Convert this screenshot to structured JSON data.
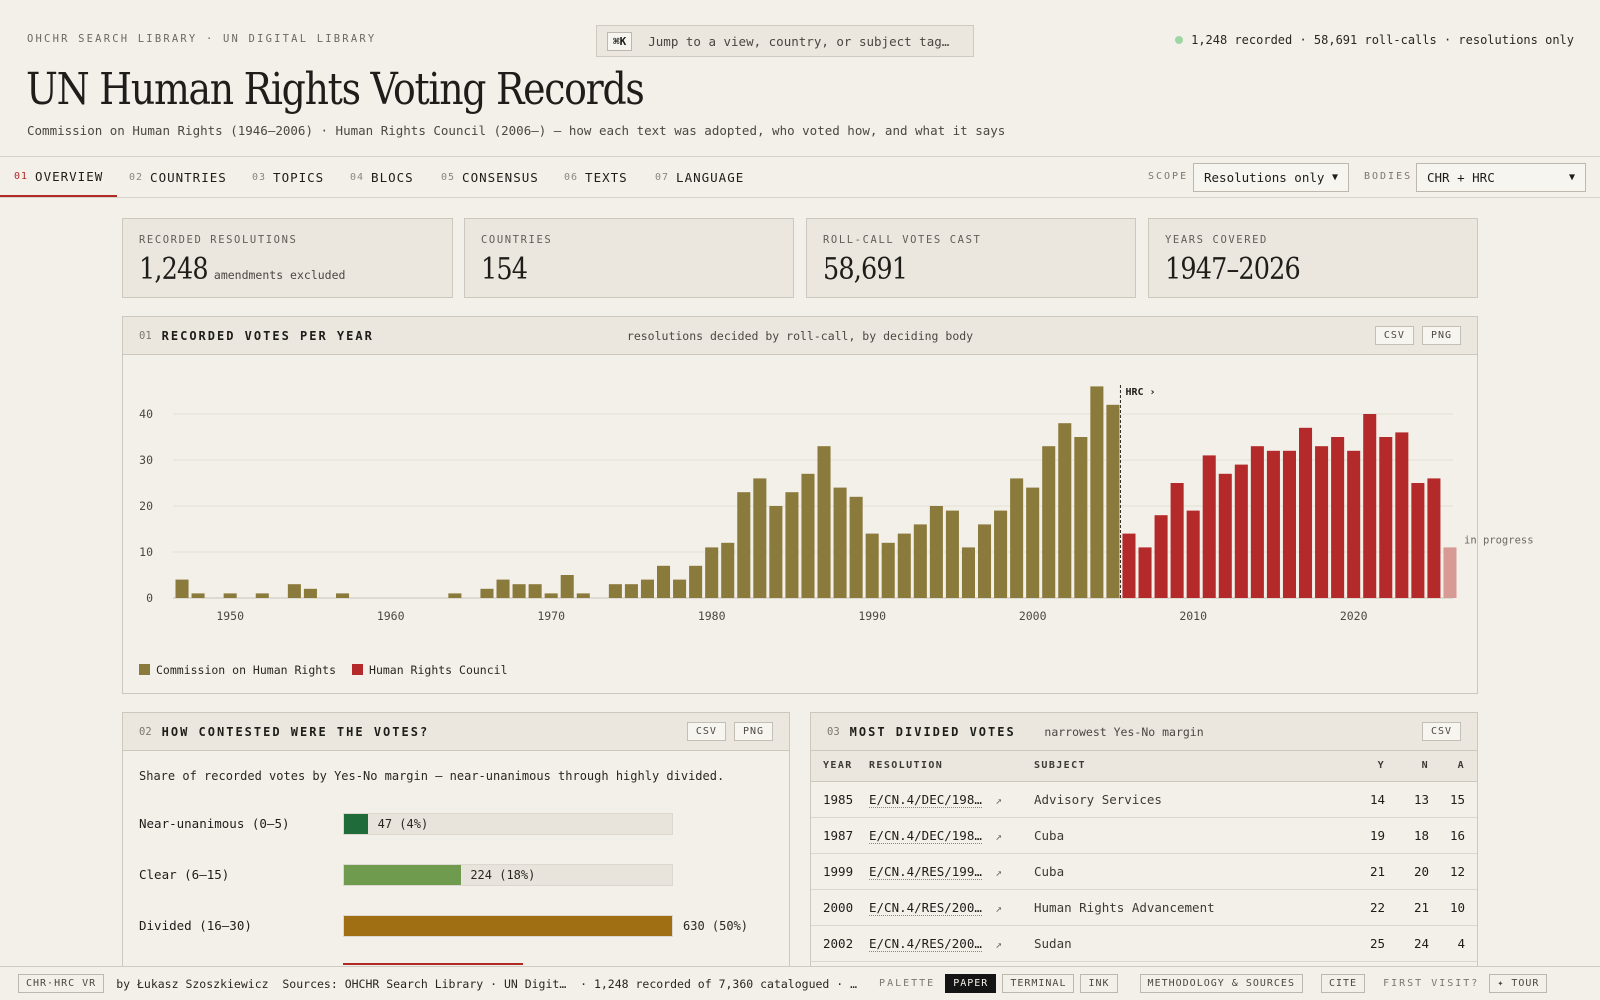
{
  "header": {
    "eyebrow": "OHCHR SEARCH LIBRARY · UN DIGITAL LIBRARY",
    "kbd": "⌘K",
    "search_placeholder": "Jump to a view, country, or subject tag…",
    "status": "1,248 recorded · 58,691 roll-calls · resolutions only",
    "title": "UN Human Rights Voting Records",
    "subtitle": "Commission on Human Rights (1946–2006) · Human Rights Council (2006–) — how each text was adopted, who voted how, and what it says"
  },
  "nav": {
    "tabs": [
      {
        "num": "01",
        "label": "OVERVIEW"
      },
      {
        "num": "02",
        "label": "COUNTRIES"
      },
      {
        "num": "03",
        "label": "TOPICS"
      },
      {
        "num": "04",
        "label": "BLOCS"
      },
      {
        "num": "05",
        "label": "CONSENSUS"
      },
      {
        "num": "06",
        "label": "TEXTS"
      },
      {
        "num": "07",
        "label": "LANGUAGE"
      }
    ],
    "scope_label": "SCOPE",
    "scope_value": "Resolutions only",
    "bodies_label": "BODIES",
    "bodies_value": "CHR + HRC"
  },
  "stats": [
    {
      "label": "RECORDED RESOLUTIONS",
      "value": "1,248",
      "note": "amendments excluded"
    },
    {
      "label": "COUNTRIES",
      "value": "154",
      "note": ""
    },
    {
      "label": "ROLL-CALL VOTES CAST",
      "value": "58,691",
      "note": ""
    },
    {
      "label": "YEARS COVERED",
      "value": "1947–2026",
      "note": ""
    }
  ],
  "votes_panel": {
    "num": "01",
    "title": "RECORDED VOTES PER YEAR",
    "subtitle": "resolutions decided by roll-call, by deciding body",
    "buttons": [
      "CSV",
      "PNG"
    ]
  },
  "contested_panel": {
    "num": "02",
    "title": "HOW CONTESTED WERE THE VOTES?",
    "buttons": [
      "CSV",
      "PNG"
    ],
    "intro": "Share of recorded votes by Yes-No margin — near-unanimous through highly divided.",
    "rows": [
      {
        "label": "Near-unanimous (0–5)",
        "count": 47,
        "value_text": "47 (4%)",
        "color": "#1f6b3a"
      },
      {
        "label": "Clear (6–15)",
        "count": 224,
        "value_text": "224 (18%)",
        "color": "#6f9b4e"
      },
      {
        "label": "Divided (16–30)",
        "count": 630,
        "value_text": "630 (50%)",
        "color": "#a06f14"
      }
    ]
  },
  "divided_panel": {
    "num": "03",
    "title": "MOST DIVIDED VOTES",
    "subtitle": "narrowest Yes-No margin",
    "buttons": [
      "CSV"
    ],
    "columns": [
      "YEAR",
      "RESOLUTION",
      "SUBJECT",
      "Y",
      "N",
      "A"
    ],
    "rows": [
      {
        "year": "1985",
        "resolution": "E/CN.4/DEC/198…",
        "subject": "Advisory Services",
        "y": "14",
        "n": "13",
        "a": "15"
      },
      {
        "year": "1987",
        "resolution": "E/CN.4/DEC/198…",
        "subject": "Cuba",
        "y": "19",
        "n": "18",
        "a": "16"
      },
      {
        "year": "1999",
        "resolution": "E/CN.4/RES/199…",
        "subject": "Cuba",
        "y": "21",
        "n": "20",
        "a": "12"
      },
      {
        "year": "2000",
        "resolution": "E/CN.4/RES/200…",
        "subject": "Human Rights Advancement",
        "y": "22",
        "n": "21",
        "a": "10"
      },
      {
        "year": "2002",
        "resolution": "E/CN.4/RES/200…",
        "subject": "Sudan",
        "y": "25",
        "n": "24",
        "a": "4"
      }
    ]
  },
  "footer": {
    "badge": "CHR·HRC VR",
    "byline": "by Łukasz Szoszkiewicz  Sources: OHCHR Search Library · UN Digit…  · 1,248 recorded of 7,360 catalogued · …",
    "palette_label": "PALETTE",
    "palettes": [
      "PAPER",
      "TERMINAL",
      "INK"
    ],
    "methodology": "METHODOLOGY & SOURCES",
    "cite": "CITE",
    "first_visit": "FIRST VISIT?",
    "tour": "✦ TOUR"
  },
  "chart_data": {
    "type": "bar",
    "title": "RECORDED VOTES PER YEAR",
    "x": [
      1947,
      1948,
      1949,
      1950,
      1951,
      1952,
      1953,
      1954,
      1955,
      1956,
      1957,
      1958,
      1959,
      1960,
      1961,
      1962,
      1963,
      1964,
      1965,
      1966,
      1967,
      1968,
      1969,
      1970,
      1971,
      1972,
      1973,
      1974,
      1975,
      1976,
      1977,
      1978,
      1979,
      1980,
      1981,
      1982,
      1983,
      1984,
      1985,
      1986,
      1987,
      1988,
      1989,
      1990,
      1991,
      1992,
      1993,
      1994,
      1995,
      1996,
      1997,
      1998,
      1999,
      2000,
      2001,
      2002,
      2003,
      2004,
      2005,
      2006,
      2007,
      2008,
      2009,
      2010,
      2011,
      2012,
      2013,
      2014,
      2015,
      2016,
      2017,
      2018,
      2019,
      2020,
      2021,
      2022,
      2023,
      2024,
      2025,
      2026
    ],
    "series": [
      {
        "name": "Commission on Human Rights",
        "color": "#8a7a3b",
        "values": [
          4,
          1,
          0,
          1,
          0,
          1,
          0,
          3,
          2,
          0,
          1,
          0,
          0,
          0,
          0,
          0,
          0,
          1,
          0,
          2,
          4,
          3,
          3,
          1,
          5,
          1,
          0,
          3,
          3,
          4,
          7,
          4,
          7,
          11,
          12,
          23,
          26,
          20,
          23,
          27,
          33,
          24,
          22,
          14,
          12,
          14,
          16,
          20,
          19,
          11,
          16,
          19,
          26,
          24,
          33,
          38,
          35,
          46,
          42,
          0,
          0,
          0,
          0,
          0,
          0,
          0,
          0,
          0,
          0,
          0,
          0,
          0,
          0,
          0,
          0,
          0,
          0,
          0,
          0,
          0
        ]
      },
      {
        "name": "Human Rights Council",
        "color": "#b42a2a",
        "values": [
          0,
          0,
          0,
          0,
          0,
          0,
          0,
          0,
          0,
          0,
          0,
          0,
          0,
          0,
          0,
          0,
          0,
          0,
          0,
          0,
          0,
          0,
          0,
          0,
          0,
          0,
          0,
          0,
          0,
          0,
          0,
          0,
          0,
          0,
          0,
          0,
          0,
          0,
          0,
          0,
          0,
          0,
          0,
          0,
          0,
          0,
          0,
          0,
          0,
          0,
          0,
          0,
          0,
          0,
          0,
          0,
          0,
          0,
          0,
          14,
          11,
          18,
          25,
          19,
          31,
          27,
          29,
          33,
          32,
          32,
          37,
          33,
          35,
          32,
          40,
          35,
          36,
          25,
          26,
          11
        ]
      }
    ],
    "in_progress_year": 2026,
    "in_progress_label": "in progress",
    "in_progress_color": "#d89a94",
    "marker_year": 2006,
    "marker_label": "HRC ›",
    "ylim": [
      0,
      46
    ],
    "yticks": [
      0,
      10,
      20,
      30,
      40
    ],
    "xticks": [
      1950,
      1960,
      1970,
      1980,
      1990,
      2000,
      2010,
      2020
    ],
    "grid": true,
    "legend_position": "bottom-left"
  }
}
